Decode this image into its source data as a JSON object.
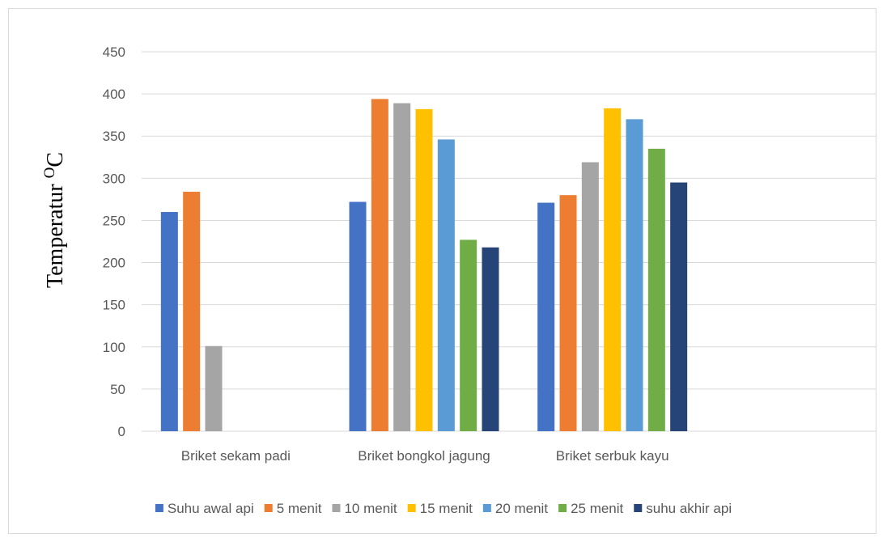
{
  "chart_data": {
    "type": "bar",
    "title": "",
    "xlabel": "",
    "ylabel": "Temperatur",
    "ylabel_unit_sup": "O",
    "ylabel_unit": "C",
    "ylim": [
      0,
      450
    ],
    "yticks": [
      0,
      50,
      100,
      150,
      200,
      250,
      300,
      350,
      400,
      450
    ],
    "grid": true,
    "legend_position": "bottom",
    "categories": [
      "Briket sekam padi",
      "Briket bongkol jagung",
      "Briket serbuk kayu"
    ],
    "series": [
      {
        "name": "Suhu awal api",
        "color": "#4472C4",
        "values": [
          260,
          272,
          271
        ]
      },
      {
        "name": "5 menit",
        "color": "#ED7D31",
        "values": [
          284,
          394,
          280
        ]
      },
      {
        "name": "10 menit",
        "color": "#A5A5A5",
        "values": [
          101,
          389,
          319
        ]
      },
      {
        "name": "15 menit",
        "color": "#FFC000",
        "values": [
          null,
          382,
          383
        ]
      },
      {
        "name": "20 menit",
        "color": "#5B9BD5",
        "values": [
          null,
          346,
          370
        ]
      },
      {
        "name": "25 menit",
        "color": "#70AD47",
        "values": [
          null,
          227,
          335
        ]
      },
      {
        "name": "suhu akhir api",
        "color": "#264478",
        "values": [
          null,
          218,
          295
        ]
      }
    ]
  }
}
